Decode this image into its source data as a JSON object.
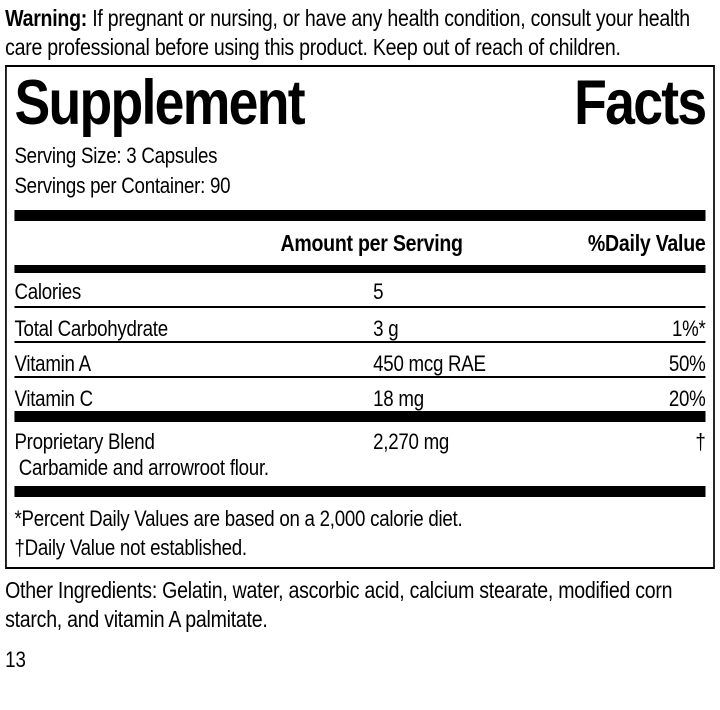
{
  "warning": {
    "label": "Warning:",
    "text": " If pregnant or nursing, or have any health condition, consult your health care professional before using this product. Keep out of reach of children."
  },
  "panel": {
    "title": {
      "word1": "Supplement",
      "word2": "Facts"
    },
    "serving_size": "Serving Size: 3 Capsules",
    "servings_per_container": "Servings per Container: 90",
    "columns": {
      "amount": "Amount per Serving",
      "daily_value": "%Daily Value"
    },
    "rows": [
      {
        "label": "Calories",
        "amount": "5",
        "dv": ""
      },
      {
        "label": "Total Carbohydrate",
        "amount": "3 g",
        "dv": "1%*"
      },
      {
        "label": "Vitamin A",
        "amount": "450 mcg RAE",
        "dv": "50%"
      },
      {
        "label": "Vitamin C",
        "amount": "18 mg",
        "dv": "20%"
      }
    ],
    "proprietary": {
      "label": "Proprietary Blend",
      "amount": "2,270 mg",
      "dv": "†",
      "description": "Carbamide and arrowroot flour."
    },
    "footnotes": [
      "*Percent Daily Values are based on a 2,000 calorie diet.",
      "†Daily Value not established."
    ]
  },
  "other_ingredients": "Other Ingredients: Gelatin, water, ascorbic acid, calcium stearate, modified corn starch, and vitamin A palmitate.",
  "page_number": "13",
  "colors": {
    "text": "#000000",
    "background": "#ffffff"
  }
}
